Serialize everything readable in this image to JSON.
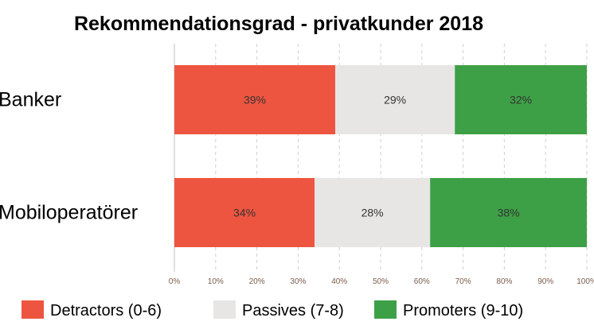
{
  "chart_data": {
    "type": "bar",
    "orientation": "horizontal",
    "stacked": true,
    "title": "Rekommendationsgrad - privatkunder 2018",
    "categories": [
      "Banker",
      "Mobiloperatörer"
    ],
    "series": [
      {
        "name": "Detractors (0-6)",
        "values": [
          39,
          34
        ],
        "labels": [
          "39%",
          "34%"
        ],
        "color": "#ee5540"
      },
      {
        "name": "Passives (7-8)",
        "values": [
          29,
          28
        ],
        "labels": [
          "29%",
          "28%"
        ],
        "color": "#e7e6e4"
      },
      {
        "name": "Promoters (9-10)",
        "values": [
          32,
          38
        ],
        "labels": [
          "32%",
          "38%"
        ],
        "color": "#3ea046"
      }
    ],
    "xlim": [
      0,
      100
    ],
    "xticks": [
      0,
      10,
      20,
      30,
      40,
      50,
      60,
      70,
      80,
      90,
      100
    ],
    "xtick_labels": [
      "0%",
      "10%",
      "20%",
      "30%",
      "40%",
      "50%",
      "60%",
      "70%",
      "80%",
      "90%",
      "100%"
    ],
    "grid": true,
    "legend_position": "bottom"
  }
}
